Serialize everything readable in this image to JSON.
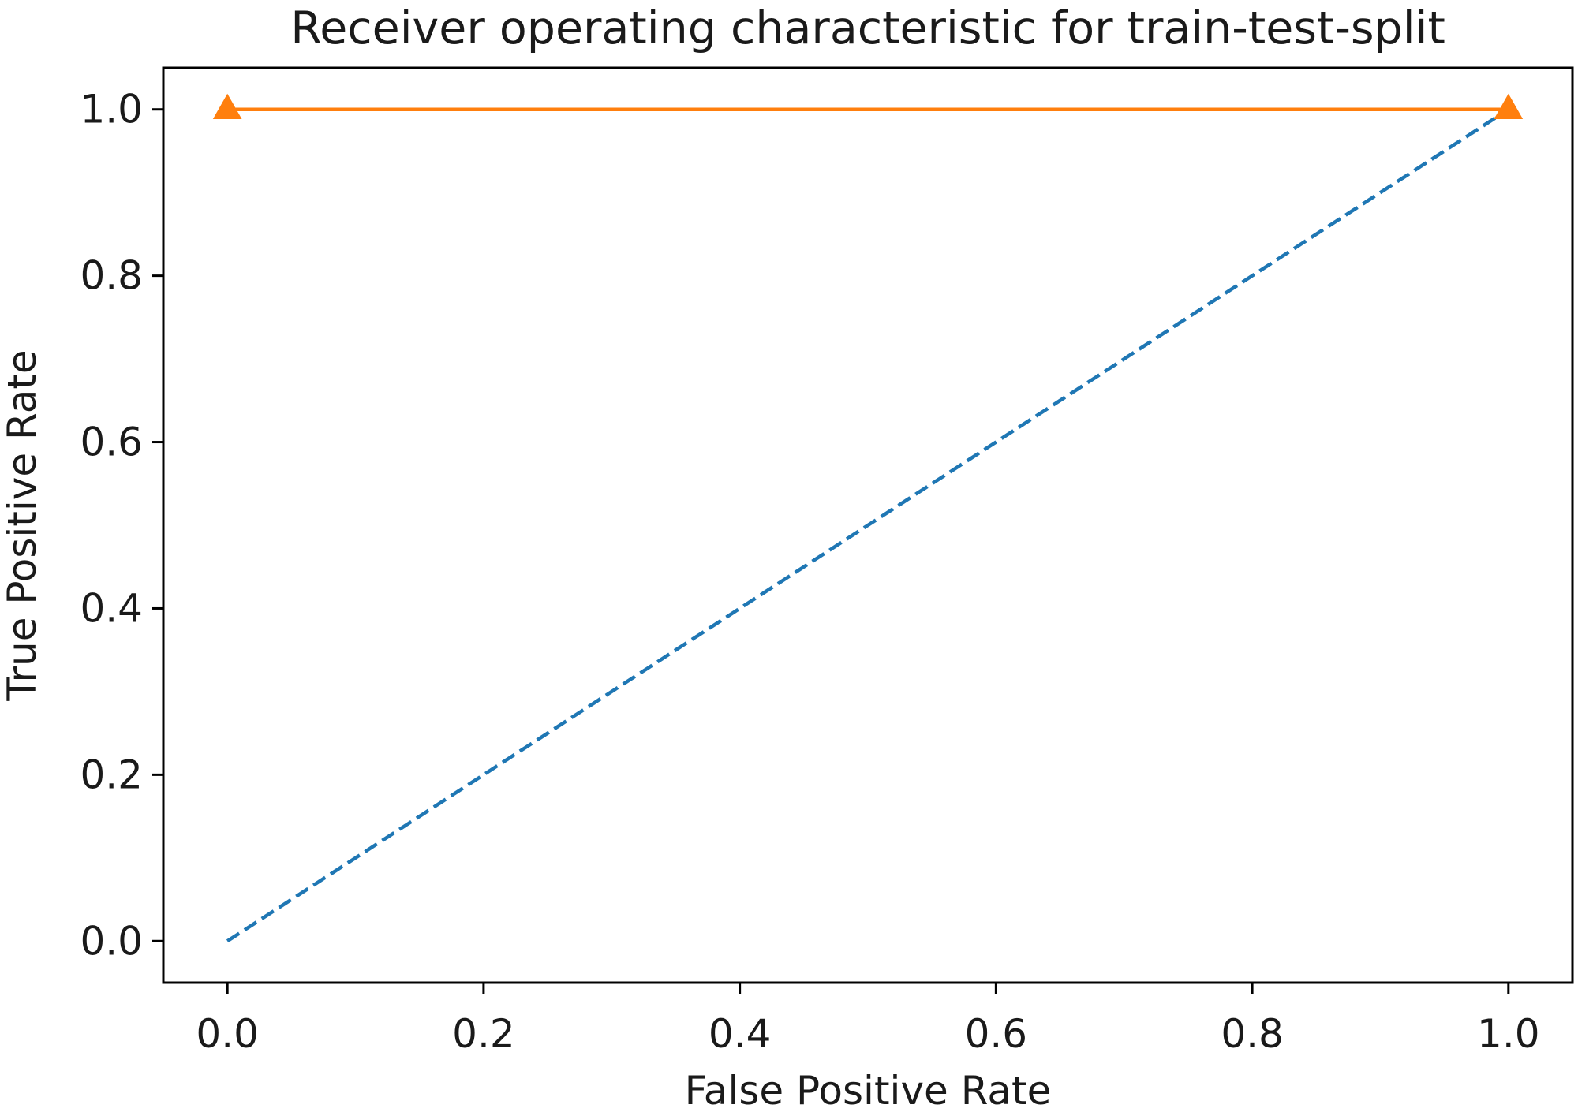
{
  "chart_data": {
    "type": "line",
    "title": "Receiver operating characteristic for train-test-split",
    "xlabel": "False Positive Rate",
    "ylabel": "True Positive Rate",
    "xlim": [
      -0.05,
      1.05
    ],
    "ylim": [
      -0.05,
      1.05
    ],
    "xticks": [
      0.0,
      0.2,
      0.4,
      0.6,
      0.8,
      1.0
    ],
    "yticks": [
      0.0,
      0.2,
      0.4,
      0.6,
      0.8,
      1.0
    ],
    "xtick_labels": [
      "0.0",
      "0.2",
      "0.4",
      "0.6",
      "0.8",
      "1.0"
    ],
    "ytick_labels": [
      "0.0",
      "0.2",
      "0.4",
      "0.6",
      "0.8",
      "1.0"
    ],
    "grid": false,
    "legend": "none",
    "series": [
      {
        "x": [
          0.0,
          1.0
        ],
        "y": [
          0.0,
          1.0
        ],
        "color": "#1f77b4",
        "linestyle": "dashed",
        "marker": "none"
      },
      {
        "x": [
          0.0,
          1.0
        ],
        "y": [
          1.0,
          1.0
        ],
        "color": "#ff7f0e",
        "linestyle": "solid",
        "marker": "triangle"
      }
    ]
  }
}
